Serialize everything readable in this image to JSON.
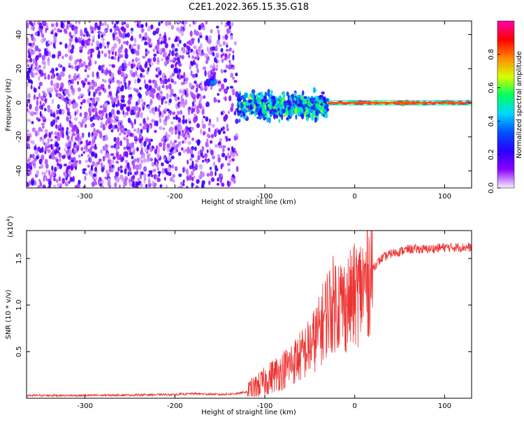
{
  "title": "C2E1.2022.365.15.35.G18",
  "chart_data": [
    {
      "type": "heatmap",
      "xlabel": "Height of straight line (km)",
      "ylabel": "Frequency (Hz)",
      "xlim": [
        -365,
        130
      ],
      "ylim": [
        -50,
        48
      ],
      "xticks": [
        "-300",
        "-200",
        "-100",
        "0",
        "100"
      ],
      "xtick_values": [
        -300,
        -200,
        -100,
        0,
        100
      ],
      "yticks": [
        "-40",
        "-20",
        "0",
        "20",
        "40"
      ],
      "ytick_values": [
        -40,
        -20,
        0,
        20,
        40
      ],
      "colorbar": {
        "label": "Normalized spectral amplitude",
        "range": [
          0,
          1
        ],
        "ticks": [
          "0.0",
          "0.2",
          "0.4",
          "0.6",
          "0.8"
        ],
        "tick_values": [
          0.0,
          0.2,
          0.4,
          0.6,
          0.8
        ],
        "colors": [
          "#f6f0ff",
          "#8a00ff",
          "#2a00ff",
          "#0050ff",
          "#00d8ff",
          "#00ff60",
          "#d8ff00",
          "#ff8800",
          "#ff0000",
          "#ff00aa"
        ]
      },
      "features": [
        {
          "x_range": [
            -365,
            -130
          ],
          "freq_range": [
            -50,
            48
          ],
          "amplitude": 0.15
        },
        {
          "x_range": [
            -130,
            -30
          ],
          "freq_range": [
            -12,
            8
          ],
          "amplitude": 0.4
        },
        {
          "x_range": [
            -30,
            130
          ],
          "freq_range": [
            -1.5,
            1.5
          ],
          "amplitude": 0.85
        },
        {
          "x_range": [
            -165,
            -155
          ],
          "freq_range": [
            10,
            14
          ],
          "amplitude": 0.25
        }
      ]
    },
    {
      "type": "line",
      "xlabel": "Height of straight line (km)",
      "ylabel": "SNR (10 * v/v)",
      "multiplier": "(x10",
      "multiplier_exp": "4",
      "multiplier_close": ")",
      "xlim": [
        -365,
        130
      ],
      "ylim": [
        0,
        1.8
      ],
      "xticks": [
        "-300",
        "-200",
        "-100",
        "0",
        "100"
      ],
      "xtick_values": [
        -300,
        -200,
        -100,
        0,
        100
      ],
      "yticks": [
        "0.5",
        "1.0",
        "1.5"
      ],
      "ytick_values": [
        0.5,
        1.0,
        1.5
      ],
      "series": [
        {
          "color": "#ee3333",
          "x": [
            -365,
            -300,
            -200,
            -180,
            -150,
            -130,
            -120,
            -110,
            -100,
            -90,
            -80,
            -70,
            -60,
            -50,
            -40,
            -30,
            -20,
            -10,
            0,
            10,
            20,
            30,
            40,
            60,
            80,
            100,
            120,
            130
          ],
          "y": [
            0.03,
            0.03,
            0.04,
            0.05,
            0.04,
            0.05,
            0.07,
            0.12,
            0.18,
            0.25,
            0.3,
            0.38,
            0.45,
            0.55,
            0.7,
            0.95,
            1.05,
            1.0,
            1.1,
            1.2,
            1.4,
            1.5,
            1.55,
            1.6,
            1.6,
            1.62,
            1.62,
            1.62
          ]
        }
      ]
    }
  ]
}
